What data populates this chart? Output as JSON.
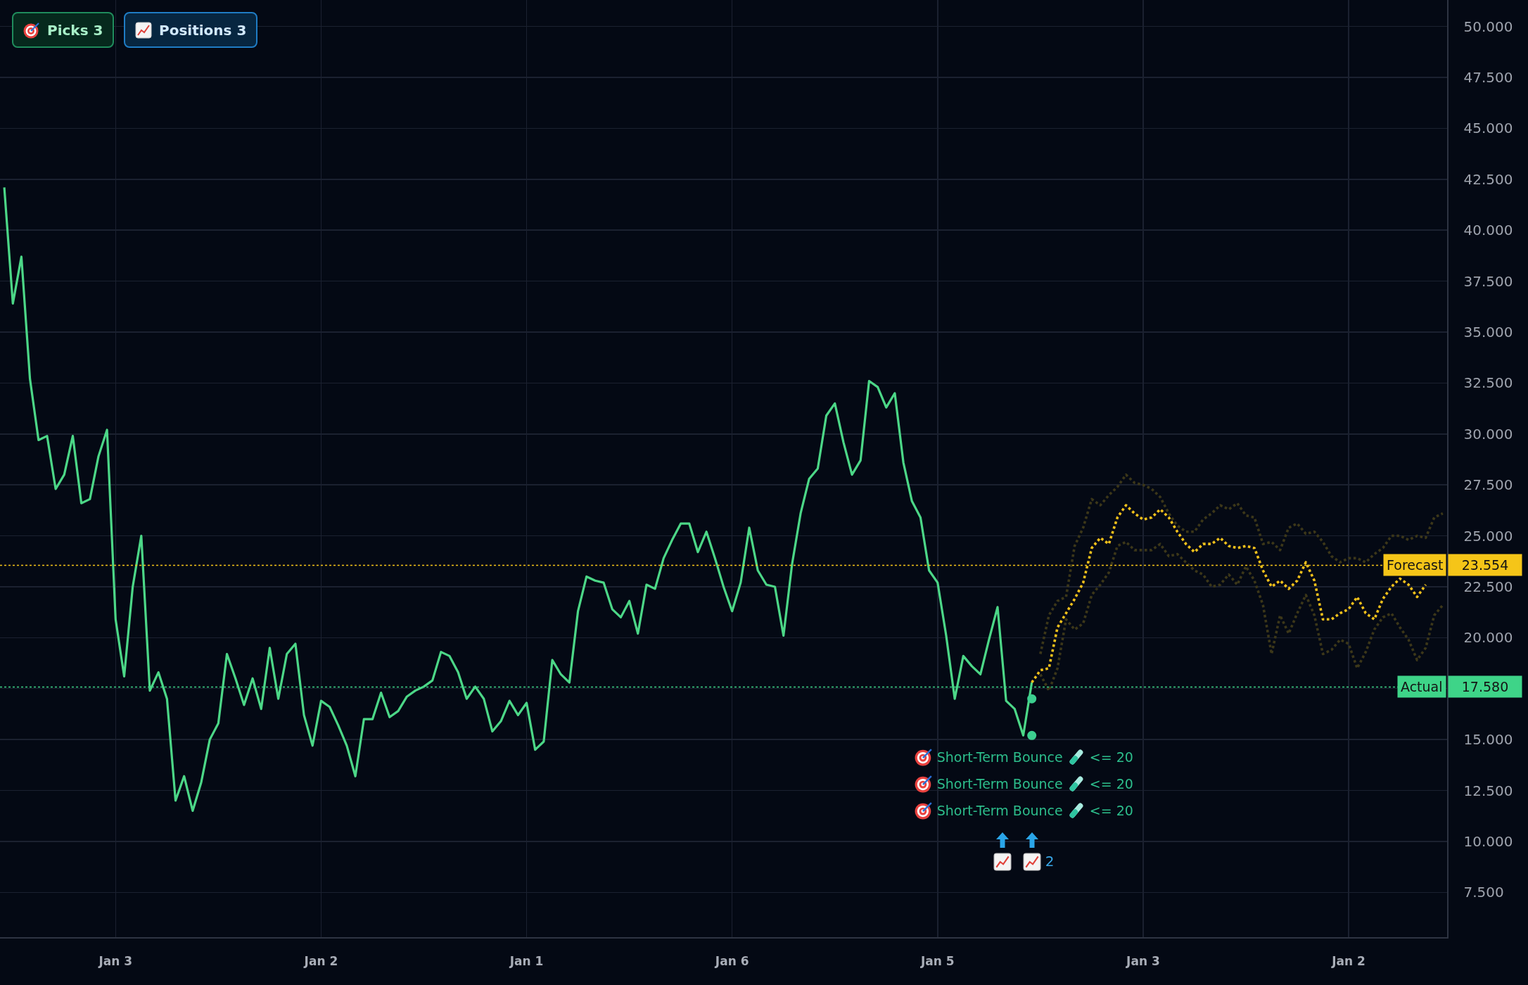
{
  "chart_data": {
    "type": "line",
    "categories": [
      null,
      null,
      null,
      null,
      null,
      null,
      null,
      null,
      null,
      null,
      null,
      null,
      null,
      "Jan 3",
      null,
      null,
      null,
      null,
      null,
      null,
      null,
      null,
      null,
      null,
      null,
      null,
      null,
      null,
      null,
      null,
      null,
      null,
      null,
      null,
      null,
      null,
      null,
      "Jan 2",
      null,
      null,
      null,
      null,
      null,
      null,
      null,
      null,
      null,
      null,
      null,
      null,
      null,
      null,
      null,
      null,
      null,
      null,
      null,
      null,
      null,
      null,
      null,
      "Jan 1",
      null,
      null,
      null,
      null,
      null,
      null,
      null,
      null,
      null,
      null,
      null,
      null,
      null,
      null,
      null,
      null,
      null,
      null,
      null,
      null,
      null,
      null,
      null,
      "Jan 6",
      null,
      null,
      null,
      null,
      null,
      null,
      null,
      null,
      null,
      null,
      null,
      null,
      null,
      null,
      null,
      null,
      null,
      null,
      null,
      null,
      null,
      null,
      null,
      "Jan 5",
      null,
      null,
      null,
      null,
      null,
      null,
      null,
      null,
      null,
      null,
      null,
      null,
      null,
      null,
      null,
      null,
      null,
      null,
      null,
      null,
      null,
      null,
      null,
      "Jan 3",
      null,
      null,
      null,
      null,
      null,
      null,
      null,
      null,
      null,
      null,
      null,
      null,
      null,
      null,
      null,
      null,
      null,
      null,
      null,
      null,
      null,
      null,
      null,
      "Jan 2",
      null,
      null,
      null,
      null,
      null,
      null,
      null,
      null,
      null,
      null,
      null
    ],
    "series": [
      {
        "color": "#4cd787",
        "values": [
          42.1,
          36.4,
          38.7,
          32.7,
          29.7,
          29.9,
          27.3,
          28.0,
          29.9,
          26.6,
          26.8,
          28.9,
          30.2,
          20.9,
          18.1,
          22.5,
          25.0,
          17.4,
          18.3,
          17.0,
          12.0,
          13.2,
          11.5,
          12.9,
          15.0,
          15.8,
          19.2,
          18.0,
          16.7,
          18.0,
          16.5,
          19.5,
          17.0,
          19.2,
          19.7,
          16.2,
          14.7,
          16.9,
          16.6,
          15.7,
          14.7,
          13.2,
          16.0,
          16.0,
          17.3,
          16.1,
          16.4,
          17.1,
          17.4,
          17.6,
          17.9,
          19.3,
          19.1,
          18.3,
          17.0,
          17.6,
          17.0,
          15.4,
          15.9,
          16.9,
          16.2,
          16.8,
          14.5,
          14.9,
          18.9,
          18.2,
          17.8,
          21.3,
          23.0,
          22.8,
          22.7,
          21.4,
          21.0,
          21.8,
          20.2,
          22.6,
          22.4,
          23.9,
          24.8,
          25.6,
          25.6,
          24.2,
          25.2,
          23.9,
          22.5,
          21.3,
          22.7,
          25.4,
          23.3,
          22.6,
          22.5,
          20.1,
          23.6,
          26.1,
          27.8,
          28.3,
          30.9,
          31.5,
          29.6,
          28.0,
          28.7,
          32.6,
          32.3,
          31.3,
          32.0,
          28.6,
          26.7,
          25.9,
          23.3,
          22.7,
          20.1,
          17.0,
          19.1,
          18.6,
          18.2,
          19.9,
          21.5,
          16.9,
          16.5,
          15.2,
          17.8,
          null,
          null,
          null,
          null,
          null,
          null,
          null,
          null,
          null,
          null,
          null,
          null,
          null,
          null,
          null,
          null,
          null,
          null,
          null,
          null,
          null,
          null,
          null,
          null,
          null,
          null,
          null,
          null,
          null,
          null,
          null,
          null,
          null,
          null,
          null,
          null,
          null,
          null,
          null,
          null,
          null,
          null,
          null,
          null,
          null,
          null,
          null,
          null
        ]
      },
      {
        "color": "#3c3719",
        "line_style": "dotted",
        "values": [
          null,
          null,
          null,
          null,
          null,
          null,
          null,
          null,
          null,
          null,
          null,
          null,
          null,
          null,
          null,
          null,
          null,
          null,
          null,
          null,
          null,
          null,
          null,
          null,
          null,
          null,
          null,
          null,
          null,
          null,
          null,
          null,
          null,
          null,
          null,
          null,
          null,
          null,
          null,
          null,
          null,
          null,
          null,
          null,
          null,
          null,
          null,
          null,
          null,
          null,
          null,
          null,
          null,
          null,
          null,
          null,
          null,
          null,
          null,
          null,
          null,
          null,
          null,
          null,
          null,
          null,
          null,
          null,
          null,
          null,
          null,
          null,
          null,
          null,
          null,
          null,
          null,
          null,
          null,
          null,
          null,
          null,
          null,
          null,
          null,
          null,
          null,
          null,
          null,
          null,
          null,
          null,
          null,
          null,
          null,
          null,
          null,
          null,
          null,
          null,
          null,
          null,
          null,
          null,
          null,
          null,
          null,
          null,
          null,
          null,
          null,
          null,
          null,
          null,
          null,
          null,
          null,
          null,
          null,
          null,
          null,
          19.2,
          21.1,
          21.8,
          22.0,
          24.5,
          25.4,
          26.8,
          26.5,
          27.0,
          27.4,
          28.0,
          27.6,
          27.5,
          27.3,
          26.9,
          26.1,
          25.5,
          25.2,
          25.2,
          25.8,
          26.1,
          26.5,
          26.3,
          26.6,
          26.0,
          25.9,
          24.6,
          24.7,
          24.3,
          25.4,
          25.6,
          25.1,
          25.2,
          24.7,
          24.0,
          23.7,
          23.9,
          23.9,
          23.7,
          24.1,
          24.4,
          25.0,
          25.0,
          24.8,
          25.0,
          24.9,
          25.9,
          26.1
        ]
      },
      {
        "color": "#3c3719",
        "line_style": "dotted",
        "values": [
          null,
          null,
          null,
          null,
          null,
          null,
          null,
          null,
          null,
          null,
          null,
          null,
          null,
          null,
          null,
          null,
          null,
          null,
          null,
          null,
          null,
          null,
          null,
          null,
          null,
          null,
          null,
          null,
          null,
          null,
          null,
          null,
          null,
          null,
          null,
          null,
          null,
          null,
          null,
          null,
          null,
          null,
          null,
          null,
          null,
          null,
          null,
          null,
          null,
          null,
          null,
          null,
          null,
          null,
          null,
          null,
          null,
          null,
          null,
          null,
          null,
          null,
          null,
          null,
          null,
          null,
          null,
          null,
          null,
          null,
          null,
          null,
          null,
          null,
          null,
          null,
          null,
          null,
          null,
          null,
          null,
          null,
          null,
          null,
          null,
          null,
          null,
          null,
          null,
          null,
          null,
          null,
          null,
          null,
          null,
          null,
          null,
          null,
          null,
          null,
          null,
          null,
          null,
          null,
          null,
          null,
          null,
          null,
          null,
          null,
          null,
          null,
          null,
          null,
          null,
          null,
          null,
          null,
          null,
          null,
          null,
          18.2,
          17.4,
          18.5,
          20.9,
          20.4,
          20.7,
          22.1,
          22.6,
          23.2,
          24.5,
          24.7,
          24.3,
          24.3,
          24.3,
          24.6,
          24.0,
          24.1,
          23.7,
          23.3,
          23.1,
          22.5,
          22.6,
          23.1,
          22.6,
          23.5,
          22.8,
          21.6,
          19.2,
          21.1,
          20.2,
          21.2,
          22.1,
          21.1,
          19.2,
          19.4,
          19.9,
          19.7,
          18.5,
          19.3,
          20.4,
          21.0,
          21.2,
          20.5,
          19.9,
          18.9,
          19.5,
          21.1,
          21.6
        ]
      },
      {
        "color": "#f2c11b",
        "line_style": "dotted",
        "values": [
          null,
          null,
          null,
          null,
          null,
          null,
          null,
          null,
          null,
          null,
          null,
          null,
          null,
          null,
          null,
          null,
          null,
          null,
          null,
          null,
          null,
          null,
          null,
          null,
          null,
          null,
          null,
          null,
          null,
          null,
          null,
          null,
          null,
          null,
          null,
          null,
          null,
          null,
          null,
          null,
          null,
          null,
          null,
          null,
          null,
          null,
          null,
          null,
          null,
          null,
          null,
          null,
          null,
          null,
          null,
          null,
          null,
          null,
          null,
          null,
          null,
          null,
          null,
          null,
          null,
          null,
          null,
          null,
          null,
          null,
          null,
          null,
          null,
          null,
          null,
          null,
          null,
          null,
          null,
          null,
          null,
          null,
          null,
          null,
          null,
          null,
          null,
          null,
          null,
          null,
          null,
          null,
          null,
          null,
          null,
          null,
          null,
          null,
          null,
          null,
          null,
          null,
          null,
          null,
          null,
          null,
          null,
          null,
          null,
          null,
          null,
          null,
          null,
          null,
          null,
          null,
          null,
          null,
          null,
          null,
          17.8,
          18.4,
          18.5,
          20.5,
          21.2,
          21.9,
          22.7,
          24.4,
          24.9,
          24.6,
          25.9,
          26.5,
          26.1,
          25.8,
          25.9,
          26.3,
          25.9,
          25.2,
          24.6,
          24.2,
          24.6,
          24.6,
          24.9,
          24.5,
          24.4,
          24.5,
          24.4,
          23.3,
          22.5,
          22.8,
          22.4,
          22.8,
          23.7,
          22.8,
          20.9,
          20.9,
          21.2,
          21.4,
          22.0,
          21.2,
          20.9,
          21.9,
          22.5,
          22.9,
          22.6,
          22.0,
          22.6,
          null,
          null
        ]
      },
      {
        "type": "scatter",
        "color": "#3ccf8f",
        "marker": "circle",
        "values": [
          null,
          null,
          null,
          null,
          null,
          null,
          null,
          null,
          null,
          null,
          null,
          null,
          null,
          null,
          null,
          null,
          null,
          null,
          null,
          null,
          null,
          null,
          null,
          null,
          null,
          null,
          null,
          null,
          null,
          null,
          null,
          null,
          null,
          null,
          null,
          null,
          null,
          null,
          null,
          null,
          null,
          null,
          null,
          null,
          null,
          null,
          null,
          null,
          null,
          null,
          null,
          null,
          null,
          null,
          null,
          null,
          null,
          null,
          null,
          null,
          null,
          null,
          null,
          null,
          null,
          null,
          null,
          null,
          null,
          null,
          null,
          null,
          null,
          null,
          null,
          null,
          null,
          null,
          null,
          null,
          null,
          null,
          null,
          null,
          null,
          null,
          null,
          null,
          null,
          null,
          null,
          null,
          null,
          null,
          null,
          null,
          null,
          null,
          null,
          null,
          null,
          null,
          null,
          null,
          null,
          null,
          null,
          null,
          null,
          null,
          null,
          null,
          null,
          null,
          null,
          null,
          null,
          null,
          null,
          null,
          17.0,
          null,
          null,
          null,
          null,
          null,
          null,
          null,
          null,
          null,
          null,
          null,
          null,
          null,
          null,
          null,
          null,
          null,
          null,
          null,
          null,
          null,
          null,
          null,
          null,
          null,
          null,
          null,
          null,
          null,
          null,
          null,
          null,
          null,
          null,
          null,
          null,
          null,
          null,
          null,
          null,
          null,
          null,
          null,
          null,
          null,
          null,
          null,
          null
        ]
      },
      {
        "type": "scatter",
        "color": "#3ccf8f",
        "marker": "circle",
        "values": [
          null,
          null,
          null,
          null,
          null,
          null,
          null,
          null,
          null,
          null,
          null,
          null,
          null,
          null,
          null,
          null,
          null,
          null,
          null,
          null,
          null,
          null,
          null,
          null,
          null,
          null,
          null,
          null,
          null,
          null,
          null,
          null,
          null,
          null,
          null,
          null,
          null,
          null,
          null,
          null,
          null,
          null,
          null,
          null,
          null,
          null,
          null,
          null,
          null,
          null,
          null,
          null,
          null,
          null,
          null,
          null,
          null,
          null,
          null,
          null,
          null,
          null,
          null,
          null,
          null,
          null,
          null,
          null,
          null,
          null,
          null,
          null,
          null,
          null,
          null,
          null,
          null,
          null,
          null,
          null,
          null,
          null,
          null,
          null,
          null,
          null,
          null,
          null,
          null,
          null,
          null,
          null,
          null,
          null,
          null,
          null,
          null,
          null,
          null,
          null,
          null,
          null,
          null,
          null,
          null,
          null,
          null,
          null,
          null,
          null,
          null,
          null,
          null,
          null,
          null,
          null,
          null,
          null,
          null,
          null,
          15.2,
          null,
          null,
          null,
          null,
          null,
          null,
          null,
          null,
          null,
          null,
          null,
          null,
          null,
          null,
          null,
          null,
          null,
          null,
          null,
          null,
          null,
          null,
          null,
          null,
          null,
          null,
          null,
          null,
          null,
          null,
          null,
          null,
          null,
          null,
          null,
          null,
          null,
          null,
          null,
          null,
          null,
          null,
          null,
          null,
          null,
          null,
          null,
          null
        ]
      }
    ],
    "ylim": [
      5.3,
      51.3
    ],
    "yticks": [
      {
        "value": 7.5,
        "label": "7.500"
      },
      {
        "value": 10,
        "label": "10.000"
      },
      {
        "value": 12.5,
        "label": "12.500"
      },
      {
        "value": 15,
        "label": "15.000"
      },
      {
        "value": 17.5,
        "label": null
      },
      {
        "value": 20,
        "label": "20.000"
      },
      {
        "value": 22.5,
        "label": "22.500"
      },
      {
        "value": 25,
        "label": "25.000"
      },
      {
        "value": 27.5,
        "label": "27.500"
      },
      {
        "value": 30,
        "label": "30.000"
      },
      {
        "value": 32.5,
        "label": "32.500"
      },
      {
        "value": 35,
        "label": "35.000"
      },
      {
        "value": 37.5,
        "label": "37.500"
      },
      {
        "value": 40,
        "label": "40.000"
      },
      {
        "value": 42.5,
        "label": "42.500"
      },
      {
        "value": 45,
        "label": "45.000"
      },
      {
        "value": 47.5,
        "label": "47.500"
      },
      {
        "value": 50,
        "label": "50.000"
      }
    ],
    "grid": true,
    "marker": "none",
    "line_style": "solid",
    "ref_lines": [
      {
        "axis": "y",
        "value": 23.554,
        "label": "Forecast",
        "color": "#f5c518",
        "line_style": "dotted"
      },
      {
        "axis": "y",
        "value": 17.58,
        "label": "Actual",
        "color": "#3ed488",
        "line_style": "dotted"
      }
    ],
    "annotations": [
      "Picks 3",
      "Positions 3",
      "23.554",
      "17.580",
      "Short-Term Bounce",
      "<= 20",
      "Short-Term Bounce",
      "<= 20",
      "Short-Term Bounce",
      "<= 20",
      "2"
    ]
  }
}
